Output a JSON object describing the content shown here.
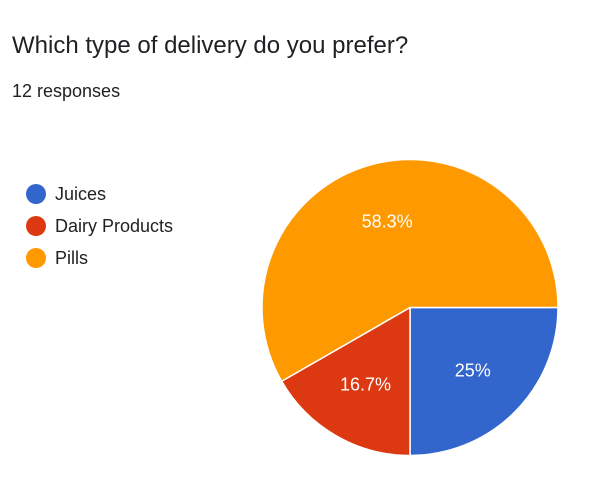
{
  "form": {
    "question": "Which type of delivery do you prefer?",
    "responses": "12 responses"
  },
  "chart_data": {
    "type": "pie",
    "title": "Which type of delivery do you prefer?",
    "legend_position": "left",
    "slices": [
      {
        "name": "Juices",
        "value": 25,
        "label": "25%",
        "color": "#3366cc"
      },
      {
        "name": "Dairy Products",
        "value": 16.7,
        "label": "16.7%",
        "color": "#dc3912"
      },
      {
        "name": "Pills",
        "value": 58.3,
        "label": "58.3%",
        "color": "#ff9900"
      }
    ]
  }
}
